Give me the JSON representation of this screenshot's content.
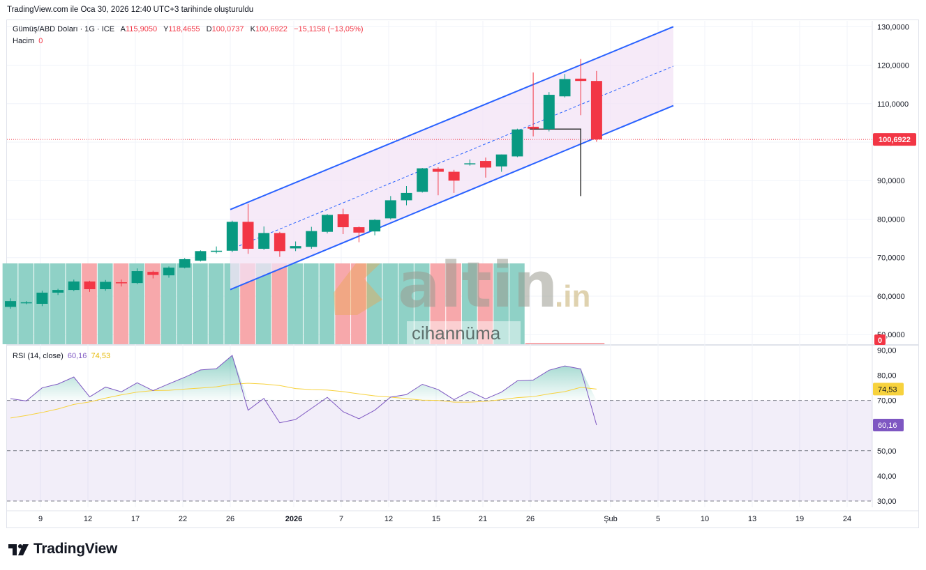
{
  "header": {
    "caption": "TradingView.com ile Oca 30, 2026 12:40 UTC+3 tarihinde oluşturuldu"
  },
  "legend": {
    "symbol": "Gümüş/ABD Doları · 1G · ICE",
    "a_label": "A",
    "a_value": "115,9050",
    "y_label": "Y",
    "y_value": "118,4655",
    "d_label": "D",
    "d_value": "100,0737",
    "k_label": "K",
    "k_value": "100,6922",
    "change": "−15,1158 (−13,05%)",
    "volume_label": "Hacim",
    "volume_value": "0",
    "rsi_label": "RSI (14, close)",
    "rsi_value": "60,16",
    "rsi_ma_value": "74,53"
  },
  "watermark": {
    "brand": "altin",
    "tld": ".in",
    "sub": "cihannüma"
  },
  "footer": {
    "brand": "TradingView"
  },
  "colors": {
    "up": "#089981",
    "down": "#f23645",
    "channel": "#2962ff",
    "channel_fill": "#f3e3f5",
    "rsi": "#7e57c2",
    "rsi_ma": "#f7d23d"
  },
  "chart_data": [
    {
      "type": "candlestick",
      "price_axis_labels": [
        "130,0000",
        "120,0000",
        "110,0000",
        "100,0000",
        "90,0000",
        "80,0000",
        "70,0000",
        "60,0000",
        "50,0000"
      ],
      "ylim": [
        47.5,
        131.5
      ],
      "time_axis_labels": [
        "9",
        "12",
        "17",
        "22",
        "26",
        "2026",
        "7",
        "12",
        "15",
        "21",
        "26",
        "Şub",
        "5",
        "10",
        "13",
        "19",
        "24"
      ],
      "last_price_label": "100,6922",
      "volume_label": "0",
      "candles": [
        {
          "o": 57.2,
          "h": 59.4,
          "l": 56.7,
          "c": 58.7
        },
        {
          "o": 58.3,
          "h": 58.7,
          "l": 57.9,
          "c": 58.4
        },
        {
          "o": 58.0,
          "h": 61.4,
          "l": 57.4,
          "c": 60.9
        },
        {
          "o": 60.9,
          "h": 61.9,
          "l": 60.3,
          "c": 61.6
        },
        {
          "o": 61.6,
          "h": 64.3,
          "l": 61.3,
          "c": 63.8
        },
        {
          "o": 63.8,
          "h": 64.0,
          "l": 61.1,
          "c": 61.8
        },
        {
          "o": 61.8,
          "h": 64.2,
          "l": 61.4,
          "c": 63.7
        },
        {
          "o": 63.6,
          "h": 64.3,
          "l": 62.5,
          "c": 63.4
        },
        {
          "o": 63.4,
          "h": 67.2,
          "l": 63.1,
          "c": 66.5
        },
        {
          "o": 66.3,
          "h": 66.6,
          "l": 64.6,
          "c": 65.5
        },
        {
          "o": 65.4,
          "h": 67.7,
          "l": 64.8,
          "c": 67.4
        },
        {
          "o": 67.4,
          "h": 69.9,
          "l": 67.2,
          "c": 69.6
        },
        {
          "o": 69.2,
          "h": 71.9,
          "l": 69.0,
          "c": 71.7
        },
        {
          "o": 71.5,
          "h": 72.9,
          "l": 71.1,
          "c": 71.8
        },
        {
          "o": 71.8,
          "h": 79.6,
          "l": 71.4,
          "c": 79.3
        },
        {
          "o": 79.3,
          "h": 83.9,
          "l": 71.0,
          "c": 72.3
        },
        {
          "o": 72.3,
          "h": 78.1,
          "l": 72.0,
          "c": 76.4
        },
        {
          "o": 76.4,
          "h": 76.7,
          "l": 70.2,
          "c": 71.7
        },
        {
          "o": 72.4,
          "h": 74.2,
          "l": 71.7,
          "c": 73.0
        },
        {
          "o": 72.8,
          "h": 78.0,
          "l": 72.3,
          "c": 76.9
        },
        {
          "o": 76.7,
          "h": 81.3,
          "l": 76.3,
          "c": 81.1
        },
        {
          "o": 81.3,
          "h": 82.7,
          "l": 76.1,
          "c": 77.9
        },
        {
          "o": 77.9,
          "h": 78.1,
          "l": 74.0,
          "c": 76.5
        },
        {
          "o": 76.8,
          "h": 80.0,
          "l": 75.8,
          "c": 79.8
        },
        {
          "o": 80.2,
          "h": 86.0,
          "l": 79.9,
          "c": 84.9
        },
        {
          "o": 84.9,
          "h": 88.6,
          "l": 83.6,
          "c": 86.8
        },
        {
          "o": 87.1,
          "h": 93.3,
          "l": 86.9,
          "c": 93.2
        },
        {
          "o": 93.1,
          "h": 93.5,
          "l": 86.2,
          "c": 92.3
        },
        {
          "o": 92.3,
          "h": 92.8,
          "l": 86.8,
          "c": 90.0
        },
        {
          "o": 94.3,
          "h": 95.5,
          "l": 93.9,
          "c": 94.5
        },
        {
          "o": 95.1,
          "h": 96.0,
          "l": 90.8,
          "c": 93.4
        },
        {
          "o": 93.7,
          "h": 96.8,
          "l": 92.3,
          "c": 96.8
        },
        {
          "o": 96.3,
          "h": 103.5,
          "l": 96.1,
          "c": 103.3
        },
        {
          "o": 104.0,
          "h": 118.1,
          "l": 101.5,
          "c": 103.5
        },
        {
          "o": 103.4,
          "h": 113.0,
          "l": 102.8,
          "c": 112.3
        },
        {
          "o": 111.9,
          "h": 117.7,
          "l": 111.6,
          "c": 116.4
        },
        {
          "o": 116.5,
          "h": 121.6,
          "l": 107.0,
          "c": 115.9
        },
        {
          "o": 115.9,
          "h": 118.5,
          "l": 100.1,
          "c": 100.7
        }
      ]
    },
    {
      "type": "line",
      "title": "RSI (14, close)",
      "ylim": [
        27.5,
        91.5
      ],
      "y_axis_labels": [
        "90,00",
        "80,00",
        "70,00",
        "60,00",
        "50,00",
        "40,00",
        "30,00"
      ],
      "bands": [
        70,
        50,
        30
      ],
      "series": [
        {
          "name": "RSI",
          "values": [
            70.7,
            69.8,
            75.0,
            76.5,
            79.3,
            71.4,
            75.3,
            73.4,
            77.0,
            73.9,
            76.6,
            79.2,
            82.1,
            82.6,
            87.9,
            66.1,
            70.8,
            61.1,
            62.4,
            66.8,
            71.2,
            65.5,
            62.7,
            66.1,
            71.3,
            72.3,
            76.4,
            74.3,
            70.3,
            73.6,
            70.6,
            73.3,
            77.8,
            78.1,
            82.0,
            83.7,
            82.5,
            60.2
          ],
          "last_label": "60,16"
        },
        {
          "name": "RSI MA",
          "values": [
            63.0,
            64.0,
            65.2,
            66.6,
            68.4,
            69.4,
            70.9,
            72.2,
            73.3,
            73.9,
            74.0,
            74.5,
            74.9,
            75.4,
            76.4,
            76.8,
            76.5,
            75.9,
            74.7,
            74.3,
            74.1,
            73.5,
            72.6,
            71.8,
            71.3,
            70.7,
            70.1,
            70.0,
            69.3,
            69.3,
            69.6,
            70.3,
            71.1,
            71.5,
            72.6,
            73.5,
            75.2,
            74.5
          ],
          "last_label": "74,53"
        }
      ]
    }
  ]
}
